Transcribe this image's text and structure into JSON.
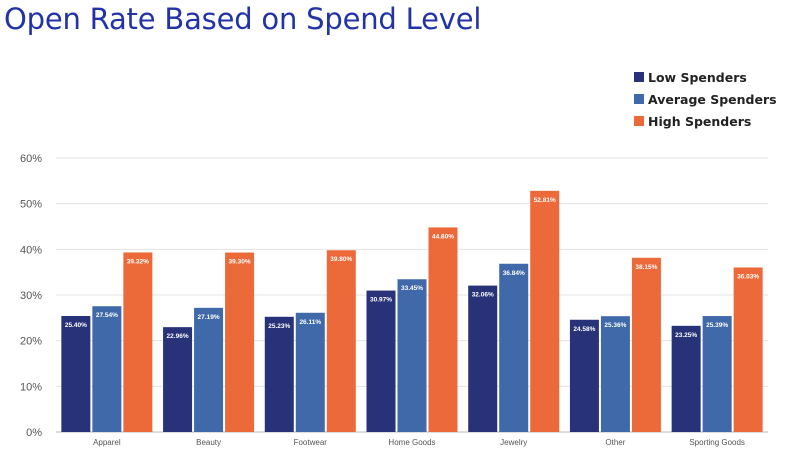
{
  "title": "Open Rate Based on Spend Level",
  "colors": {
    "low": "#283278",
    "average": "#3f69a8",
    "high": "#ec6a3a",
    "grid": "#e3e3e3",
    "axis": "#bbbbbb"
  },
  "chart_data": {
    "type": "bar",
    "title": "Open Rate Based on Spend Level",
    "xlabel": "",
    "ylabel": "",
    "ylim": [
      0,
      60
    ],
    "yticks": [
      "0%",
      "10%",
      "20%",
      "30%",
      "40%",
      "50%",
      "60%"
    ],
    "grid": true,
    "legend_position": "top-right",
    "categories": [
      "Apparel",
      "Beauty",
      "Footwear",
      "Home Goods",
      "Jewelry",
      "Other",
      "Sporting Goods"
    ],
    "series": [
      {
        "name": "Low Spenders",
        "color": "#283278",
        "values": [
          25.4,
          22.96,
          25.23,
          30.97,
          32.06,
          24.58,
          23.25
        ],
        "labels": [
          "25.40%",
          "22.96%",
          "25.23%",
          "30.97%",
          "32.06%",
          "24.58%",
          "23.25%"
        ]
      },
      {
        "name": "Average Spenders",
        "color": "#3f69a8",
        "values": [
          27.54,
          27.19,
          26.11,
          33.45,
          36.84,
          25.36,
          25.39
        ],
        "labels": [
          "27.54%",
          "27.19%",
          "26.11%",
          "33.45%",
          "36.84%",
          "25.36%",
          "25.39%"
        ]
      },
      {
        "name": "High Spenders",
        "color": "#ec6a3a",
        "values": [
          39.32,
          39.3,
          39.8,
          44.8,
          52.81,
          38.15,
          36.03
        ],
        "labels": [
          "39.32%",
          "39.30%",
          "39.80%",
          "44.80%",
          "52.81%",
          "38.15%",
          "36.03%"
        ]
      }
    ]
  }
}
